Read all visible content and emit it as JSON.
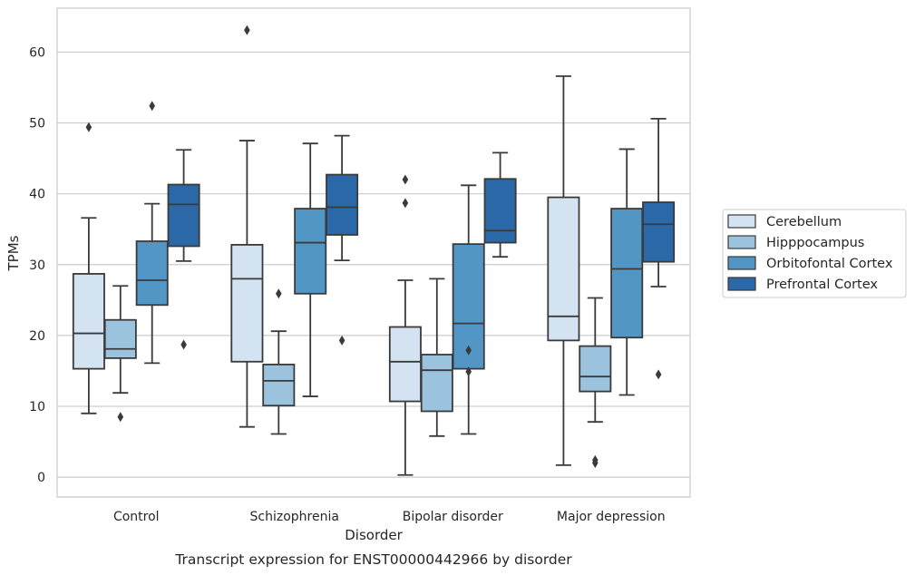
{
  "caption": "Transcript expression for ENST00000442966 by disorder",
  "chart_data": {
    "type": "box",
    "xlabel": "Disorder",
    "ylabel": "TPMs",
    "ylim": [
      -2.8,
      66.2
    ],
    "yticks": [
      0,
      10,
      20,
      30,
      40,
      50,
      60
    ],
    "grid": "horizontal",
    "legend_position": "right",
    "categories": [
      "Control",
      "Schizophrenia",
      "Bipolar disorder",
      "Major depression"
    ],
    "series": [
      {
        "name": "Cerebellum",
        "color": "#d4e3f2",
        "boxes": [
          {
            "whisker_low": 9.0,
            "q1": 15.3,
            "median": 20.3,
            "q3": 28.7,
            "whisker_high": 36.6,
            "outliers": [
              49.4
            ]
          },
          {
            "whisker_low": 7.1,
            "q1": 16.3,
            "median": 28.0,
            "q3": 32.8,
            "whisker_high": 47.5,
            "outliers": [
              63.1
            ]
          },
          {
            "whisker_low": 0.3,
            "q1": 10.7,
            "median": 16.3,
            "q3": 21.2,
            "whisker_high": 27.8,
            "outliers": [
              38.7,
              42.0
            ]
          },
          {
            "whisker_low": 1.7,
            "q1": 19.3,
            "median": 22.7,
            "q3": 39.5,
            "whisker_high": 56.6,
            "outliers": []
          }
        ]
      },
      {
        "name": "Hipppocampus",
        "color": "#9cc3dd",
        "boxes": [
          {
            "whisker_low": 11.9,
            "q1": 16.8,
            "median": 18.1,
            "q3": 22.2,
            "whisker_high": 27.0,
            "outliers": [
              8.5
            ]
          },
          {
            "whisker_low": 6.1,
            "q1": 10.1,
            "median": 13.6,
            "q3": 15.9,
            "whisker_high": 20.6,
            "outliers": [
              25.9
            ]
          },
          {
            "whisker_low": 5.8,
            "q1": 9.3,
            "median": 15.1,
            "q3": 17.3,
            "whisker_high": 28.0,
            "outliers": []
          },
          {
            "whisker_low": 7.8,
            "q1": 12.1,
            "median": 14.2,
            "q3": 18.5,
            "whisker_high": 25.3,
            "outliers": [
              2.0,
              2.4
            ]
          }
        ]
      },
      {
        "name": "Orbitofontal Cortex",
        "color": "#5296c5",
        "boxes": [
          {
            "whisker_low": 16.1,
            "q1": 24.3,
            "median": 27.8,
            "q3": 33.3,
            "whisker_high": 38.6,
            "outliers": [
              52.4
            ]
          },
          {
            "whisker_low": 11.4,
            "q1": 25.9,
            "median": 33.1,
            "q3": 37.9,
            "whisker_high": 47.1,
            "outliers": []
          },
          {
            "whisker_low": 6.1,
            "q1": 15.3,
            "median": 21.7,
            "q3": 32.9,
            "whisker_high": 41.2,
            "outliers": [
              14.9,
              17.9
            ]
          },
          {
            "whisker_low": 11.6,
            "q1": 19.7,
            "median": 29.4,
            "q3": 37.9,
            "whisker_high": 46.3,
            "outliers": []
          }
        ]
      },
      {
        "name": "Prefrontal Cortex",
        "color": "#2a68a7",
        "boxes": [
          {
            "whisker_low": 30.5,
            "q1": 32.6,
            "median": 38.5,
            "q3": 41.3,
            "whisker_high": 46.2,
            "outliers": [
              18.7
            ]
          },
          {
            "whisker_low": 30.6,
            "q1": 34.2,
            "median": 38.1,
            "q3": 42.7,
            "whisker_high": 48.2,
            "outliers": [
              19.3
            ]
          },
          {
            "whisker_low": 31.1,
            "q1": 33.1,
            "median": 34.8,
            "q3": 42.1,
            "whisker_high": 45.8,
            "outliers": []
          },
          {
            "whisker_low": 26.9,
            "q1": 30.4,
            "median": 35.7,
            "q3": 38.8,
            "whisker_high": 50.6,
            "outliers": [
              14.5
            ]
          }
        ]
      }
    ]
  }
}
